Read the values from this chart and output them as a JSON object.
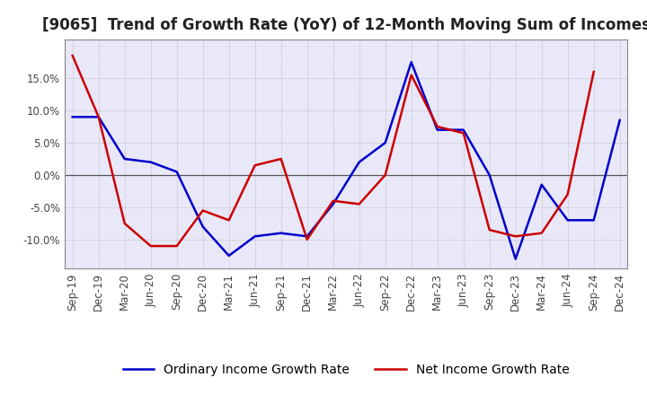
{
  "title": "[9065]  Trend of Growth Rate (YoY) of 12-Month Moving Sum of Incomes",
  "x_labels": [
    "Sep-19",
    "Dec-19",
    "Mar-20",
    "Jun-20",
    "Sep-20",
    "Dec-20",
    "Mar-21",
    "Jun-21",
    "Sep-21",
    "Dec-21",
    "Mar-22",
    "Jun-22",
    "Sep-22",
    "Dec-22",
    "Mar-23",
    "Jun-23",
    "Sep-23",
    "Dec-23",
    "Mar-24",
    "Jun-24",
    "Sep-24",
    "Dec-24"
  ],
  "ordinary_income": [
    9.0,
    9.0,
    2.5,
    2.0,
    0.5,
    -8.0,
    -12.5,
    -9.5,
    -9.0,
    -9.5,
    -4.5,
    2.0,
    5.0,
    17.5,
    7.0,
    7.0,
    0.0,
    -13.0,
    -1.5,
    -7.0,
    -7.0,
    8.5
  ],
  "net_income": [
    18.5,
    9.0,
    -7.5,
    -11.0,
    -11.0,
    -5.5,
    -7.0,
    1.5,
    2.5,
    -10.0,
    -4.0,
    -4.5,
    0.0,
    15.5,
    7.5,
    6.5,
    -8.5,
    -9.5,
    -9.0,
    -3.0,
    16.0,
    null
  ],
  "ordinary_color": "#0000cc",
  "net_color": "#cc0000",
  "background_color": "#ffffff",
  "plot_bg_color": "#e8e8f8",
  "grid_color": "#aaaaaa",
  "ylim": [
    -14.5,
    21.0
  ],
  "yticks": [
    -10.0,
    -5.0,
    0.0,
    5.0,
    10.0,
    15.0
  ],
  "legend_ordinary": "Ordinary Income Growth Rate",
  "legend_net": "Net Income Growth Rate",
  "title_fontsize": 12,
  "tick_fontsize": 8.5,
  "legend_fontsize": 10
}
